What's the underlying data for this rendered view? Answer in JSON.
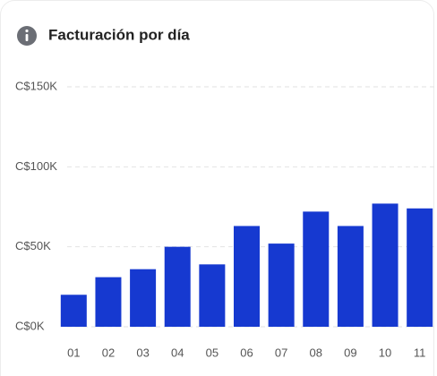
{
  "chart_data": {
    "type": "bar",
    "title": "Facturación por día",
    "categories": [
      "01",
      "02",
      "03",
      "04",
      "05",
      "06",
      "07",
      "08",
      "09",
      "10",
      "11"
    ],
    "values": [
      20000,
      31000,
      36000,
      50000,
      39000,
      63000,
      52000,
      72000,
      63000,
      77000,
      74000
    ],
    "color": "#1639d0",
    "ylim": [
      0,
      150000
    ],
    "yticks": [
      {
        "value": 0,
        "label": "C$0K"
      },
      {
        "value": 50000,
        "label": "C$50K"
      },
      {
        "value": 100000,
        "label": "C$100K"
      },
      {
        "value": 150000,
        "label": "C$150K"
      }
    ],
    "grid": true
  }
}
